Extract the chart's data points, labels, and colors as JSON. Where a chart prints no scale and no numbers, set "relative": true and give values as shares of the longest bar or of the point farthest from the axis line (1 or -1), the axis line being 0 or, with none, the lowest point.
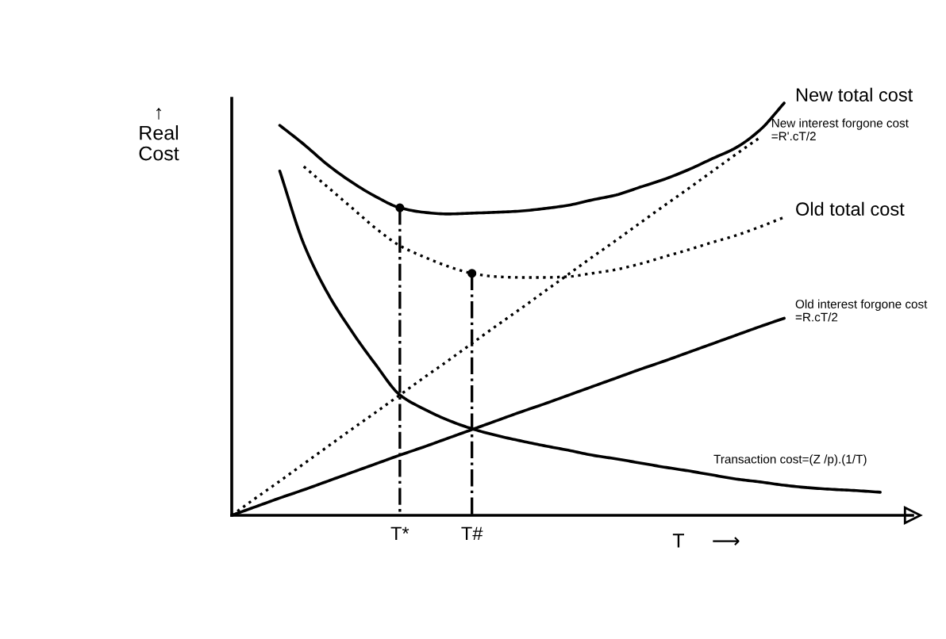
{
  "chart_data": {
    "type": "line",
    "relative": true,
    "xlabel": "T     ⟶",
    "ylabel": "↑\nReal\nCost",
    "marker": "none",
    "categories": [
      null,
      null,
      null,
      null,
      null,
      null,
      null,
      "T*",
      null,
      null,
      "T#",
      null,
      null,
      null,
      null,
      null,
      null,
      null,
      null,
      null,
      null,
      null,
      null,
      null,
      null,
      null,
      null,
      null
    ],
    "series": [
      {
        "name": "New total cost",
        "color": "#000000",
        "line_style": "solid",
        "values": [
          null,
          null,
          0.946,
          0.9,
          0.85,
          0.808,
          0.773,
          0.746,
          0.735,
          0.731,
          0.733,
          0.735,
          0.738,
          0.744,
          0.752,
          0.765,
          0.777,
          0.796,
          0.815,
          0.838,
          0.865,
          0.892,
          0.935,
          1.0,
          null,
          null,
          null,
          null
        ]
      },
      {
        "name": "New interest forgone cost\n=R'.cT/2",
        "color": "#000000",
        "line_style": "dotted",
        "values": [
          0,
          0.042,
          0.083,
          0.125,
          0.167,
          0.209,
          0.25,
          0.292,
          0.334,
          0.375,
          0.417,
          0.459,
          0.5,
          0.542,
          0.584,
          0.626,
          0.667,
          0.709,
          0.751,
          0.792,
          0.834,
          0.876,
          0.917,
          null,
          null,
          null,
          null,
          null
        ]
      },
      {
        "name": "Old total cost",
        "color": "#000000",
        "line_style": "dotted",
        "values": [
          null,
          null,
          null,
          0.846,
          0.796,
          0.746,
          0.696,
          0.654,
          0.627,
          0.604,
          0.587,
          0.579,
          0.577,
          0.577,
          0.579,
          0.587,
          0.596,
          0.61,
          0.627,
          0.644,
          0.662,
          0.679,
          0.7,
          0.723,
          null,
          null,
          null,
          null
        ]
      },
      {
        "name": "Old interest forgone cost\n=R.cT/2",
        "color": "#000000",
        "line_style": "solid",
        "values": [
          0,
          0.021,
          0.042,
          0.062,
          0.083,
          0.104,
          0.125,
          0.146,
          0.166,
          0.187,
          0.208,
          0.229,
          0.25,
          0.27,
          0.291,
          0.312,
          0.333,
          0.354,
          0.374,
          0.395,
          0.416,
          0.437,
          0.458,
          0.478,
          null,
          null,
          null,
          null
        ]
      },
      {
        "name": "Transaction cost=(Z /p).(1/T)",
        "color": "#000000",
        "line_style": "solid",
        "values": [
          null,
          null,
          0.835,
          0.658,
          0.538,
          0.446,
          0.365,
          0.292,
          0.258,
          0.231,
          0.21,
          0.194,
          0.181,
          0.169,
          0.158,
          0.146,
          0.137,
          0.127,
          0.117,
          0.108,
          0.098,
          0.088,
          0.081,
          0.073,
          0.067,
          0.063,
          0.06,
          0.056
        ]
      },
      {
        "type": "lollipop",
        "color": "#000000",
        "line_style": "dashdot",
        "marker": "circle",
        "values": [
          null,
          null,
          null,
          null,
          null,
          null,
          null,
          0.746,
          null,
          null,
          0.587,
          null,
          null,
          null,
          null,
          null,
          null,
          null,
          null,
          null,
          null,
          null,
          null,
          null,
          null,
          null,
          null,
          null
        ]
      }
    ]
  }
}
